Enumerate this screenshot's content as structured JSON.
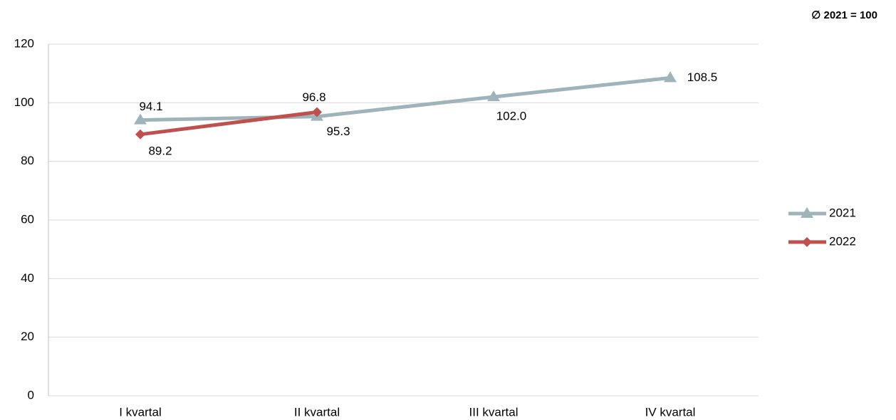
{
  "chart_data": {
    "type": "line",
    "annotation": "∅ 2021 = 100",
    "categories": [
      "I kvartal",
      "II kvartal",
      "III kvartal",
      "IV kvartal"
    ],
    "series": [
      {
        "name": "2021",
        "color": "#9fb3ba",
        "marker": "triangle",
        "values": [
          94.1,
          95.3,
          102,
          108.5
        ],
        "value_labels": [
          "94.1",
          "95.3",
          "102.0",
          "108.5"
        ]
      },
      {
        "name": "2022",
        "color": "#c0504d",
        "marker": "diamond",
        "values": [
          89.2,
          96.8,
          null,
          null
        ],
        "value_labels": [
          "89.2",
          "96.8",
          null,
          null
        ]
      }
    ],
    "ylim": [
      0,
      120
    ],
    "yticks": [
      0,
      20,
      40,
      60,
      80,
      100,
      120
    ],
    "grid": true,
    "legend": "right"
  }
}
